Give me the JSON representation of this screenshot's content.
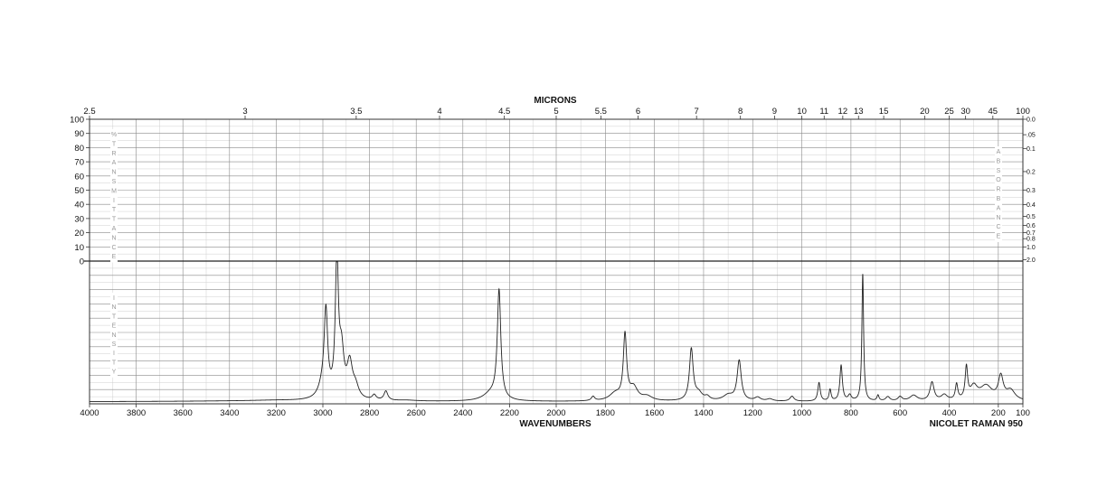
{
  "chart_data": {
    "type": "line",
    "title": "MICRONS",
    "xlabel": "WAVENUMBERS",
    "footer": "NICOLET RAMAN 950",
    "x_axis": {
      "range": [
        4000,
        100
      ],
      "ticks": [
        4000,
        3800,
        3600,
        3400,
        3200,
        3000,
        2800,
        2600,
        2400,
        2200,
        2000,
        1800,
        1600,
        1400,
        1200,
        1000,
        800,
        600,
        400,
        200,
        100
      ]
    },
    "top_axis": {
      "ticks": [
        {
          "label": "2.5",
          "wn": 4000
        },
        {
          "label": "3",
          "wn": 3333.3
        },
        {
          "label": "3.5",
          "wn": 2857.1
        },
        {
          "label": "4",
          "wn": 2500
        },
        {
          "label": "4.5",
          "wn": 2222.2
        },
        {
          "label": "5",
          "wn": 2000
        },
        {
          "label": "5.5",
          "wn": 1818.2
        },
        {
          "label": "6",
          "wn": 1666.7
        },
        {
          "label": "7",
          "wn": 1428.6
        },
        {
          "label": "8",
          "wn": 1250
        },
        {
          "label": "9",
          "wn": 1111.1
        },
        {
          "label": "10",
          "wn": 1000
        },
        {
          "label": "11",
          "wn": 909.1
        },
        {
          "label": "12",
          "wn": 833.3
        },
        {
          "label": "13",
          "wn": 769.2
        },
        {
          "label": "15",
          "wn": 666.7
        },
        {
          "label": "20",
          "wn": 500
        },
        {
          "label": "25",
          "wn": 400
        },
        {
          "label": "30",
          "wn": 333.3
        },
        {
          "label": "45",
          "wn": 222.2
        },
        {
          "label": "100",
          "wn": 100
        }
      ]
    },
    "transmittance_axis": {
      "label": "%TRANSMITTANCE",
      "ticks": [
        100,
        90,
        80,
        70,
        60,
        50,
        40,
        30,
        20,
        10,
        0
      ]
    },
    "absorbance_axis": {
      "label": "ABSORBANCE",
      "ticks": [
        {
          "label": "0.0",
          "t": 100
        },
        {
          "label": ".05",
          "t": 89.1
        },
        {
          "label": "0.1",
          "t": 79.4
        },
        {
          "label": "0.2",
          "t": 63.1
        },
        {
          "label": "0.3",
          "t": 50.1
        },
        {
          "label": "0.4",
          "t": 39.8
        },
        {
          "label": "0.5",
          "t": 31.6
        },
        {
          "label": "0.6",
          "t": 25.1
        },
        {
          "label": "0.7",
          "t": 20.0
        },
        {
          "label": "0.8",
          "t": 15.8
        },
        {
          "label": "1.0",
          "t": 10.0
        },
        {
          "label": "2.0",
          "t": 1.0
        }
      ]
    },
    "intensity_axis_label": "INTENSITY",
    "baseline": 1.5,
    "spectrum": {
      "series": [
        {
          "peaks": [
            {
              "x": 3400,
              "h": 0.3,
              "w": 300
            },
            {
              "x": 3200,
              "h": 0.6,
              "w": 140
            },
            {
              "x": 3000,
              "h": 9.0,
              "w": 22
            },
            {
              "x": 2987,
              "h": 57,
              "w": 9
            },
            {
              "x": 2940,
              "h": 96,
              "w": 8
            },
            {
              "x": 2920,
              "h": 30,
              "w": 12
            },
            {
              "x": 2885,
              "h": 24,
              "w": 14
            },
            {
              "x": 2860,
              "h": 8,
              "w": 16
            },
            {
              "x": 2780,
              "h": 3.5,
              "w": 10
            },
            {
              "x": 2730,
              "h": 6.5,
              "w": 10
            },
            {
              "x": 2640,
              "h": 0.6,
              "w": 50
            },
            {
              "x": 2245,
              "h": 76,
              "w": 9
            },
            {
              "x": 2280,
              "h": 5,
              "w": 40
            },
            {
              "x": 1850,
              "h": 3,
              "w": 8
            },
            {
              "x": 1760,
              "h": 5,
              "w": 28
            },
            {
              "x": 1720,
              "h": 45,
              "w": 8
            },
            {
              "x": 1685,
              "h": 9,
              "w": 20
            },
            {
              "x": 1630,
              "h": 3,
              "w": 25
            },
            {
              "x": 1450,
              "h": 36,
              "w": 9
            },
            {
              "x": 1420,
              "h": 5,
              "w": 18
            },
            {
              "x": 1385,
              "h": 2.5,
              "w": 12
            },
            {
              "x": 1300,
              "h": 4,
              "w": 25
            },
            {
              "x": 1255,
              "h": 28,
              "w": 10
            },
            {
              "x": 1180,
              "h": 2.5,
              "w": 14
            },
            {
              "x": 1130,
              "h": 1.5,
              "w": 15
            },
            {
              "x": 1040,
              "h": 3.5,
              "w": 10
            },
            {
              "x": 930,
              "h": 13,
              "w": 6
            },
            {
              "x": 885,
              "h": 8,
              "w": 5
            },
            {
              "x": 840,
              "h": 25,
              "w": 6
            },
            {
              "x": 805,
              "h": 4,
              "w": 8
            },
            {
              "x": 752,
              "h": 89,
              "w": 4.2
            },
            {
              "x": 690,
              "h": 4,
              "w": 5
            },
            {
              "x": 650,
              "h": 3,
              "w": 10
            },
            {
              "x": 600,
              "h": 3,
              "w": 10
            },
            {
              "x": 545,
              "h": 4,
              "w": 18
            },
            {
              "x": 470,
              "h": 13,
              "w": 10
            },
            {
              "x": 420,
              "h": 4,
              "w": 15
            },
            {
              "x": 370,
              "h": 11,
              "w": 6
            },
            {
              "x": 330,
              "h": 22,
              "w": 6
            },
            {
              "x": 300,
              "h": 9,
              "w": 18
            },
            {
              "x": 250,
              "h": 10,
              "w": 30
            },
            {
              "x": 190,
              "h": 16,
              "w": 12
            },
            {
              "x": 150,
              "h": 7,
              "w": 22
            }
          ]
        }
      ]
    }
  }
}
